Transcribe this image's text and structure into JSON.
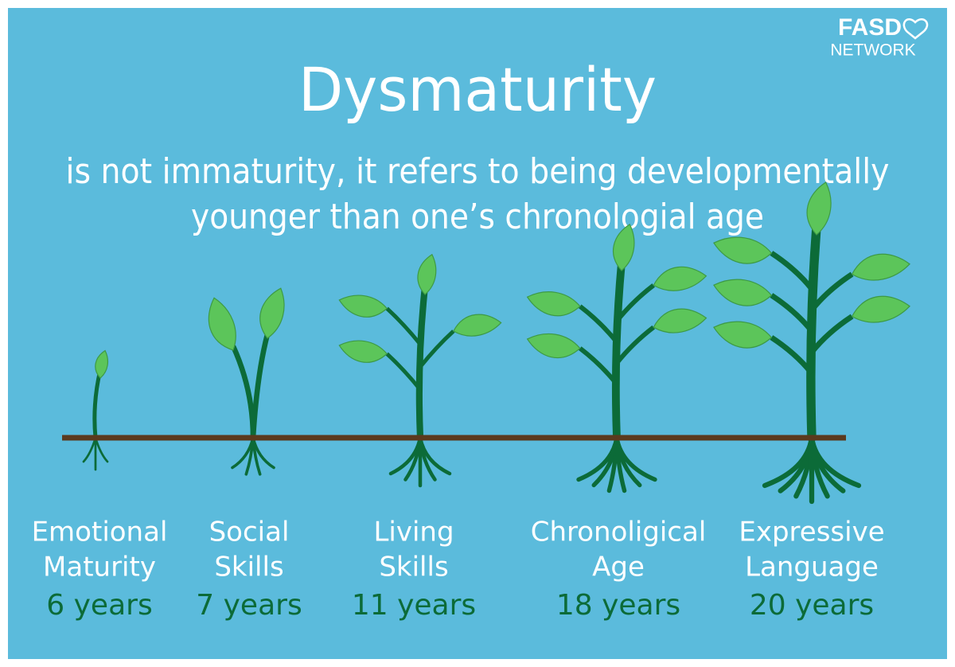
{
  "logo": {
    "name": "FASD",
    "sub": "NETWORK"
  },
  "title": "Dysmaturity",
  "subtitle": [
    "is not immaturity, it refers to being developmentally",
    "younger than one’s chronologial age"
  ],
  "items": [
    {
      "label": [
        "Emotional",
        "Maturity"
      ],
      "age": "6 years"
    },
    {
      "label": [
        "Social",
        "Skills"
      ],
      "age": "7 years"
    },
    {
      "label": [
        "Living",
        "Skills"
      ],
      "age": "11 years"
    },
    {
      "label": [
        "Chronoligical",
        "Age"
      ],
      "age": "18 years"
    },
    {
      "label": [
        "Expressive",
        "Language"
      ],
      "age": "20 years"
    }
  ]
}
